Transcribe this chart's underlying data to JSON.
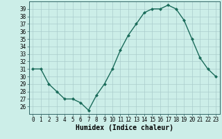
{
  "x": [
    0,
    1,
    2,
    3,
    4,
    5,
    6,
    7,
    8,
    9,
    10,
    11,
    12,
    13,
    14,
    15,
    16,
    17,
    18,
    19,
    20,
    21,
    22,
    23
  ],
  "y": [
    31,
    31,
    29,
    28,
    27,
    27,
    26.5,
    25.5,
    27.5,
    29,
    31,
    33.5,
    35.5,
    37,
    38.5,
    39,
    39,
    39.5,
    39,
    37.5,
    35,
    32.5,
    31,
    30
  ],
  "line_color": "#1a6b5a",
  "marker": "D",
  "marker_size": 2.0,
  "bg_color": "#cceee8",
  "grid_color": "#aacccc",
  "xlabel": "Humidex (Indice chaleur)",
  "xlabel_fontsize": 7.0,
  "ylim": [
    25.0,
    40.0
  ],
  "xlim": [
    -0.5,
    23.5
  ],
  "yticks": [
    26,
    27,
    28,
    29,
    30,
    31,
    32,
    33,
    34,
    35,
    36,
    37,
    38,
    39
  ],
  "xticks": [
    0,
    1,
    2,
    3,
    4,
    5,
    6,
    7,
    8,
    9,
    10,
    11,
    12,
    13,
    14,
    15,
    16,
    17,
    18,
    19,
    20,
    21,
    22,
    23
  ],
  "tick_fontsize": 5.5,
  "lw": 1.0
}
